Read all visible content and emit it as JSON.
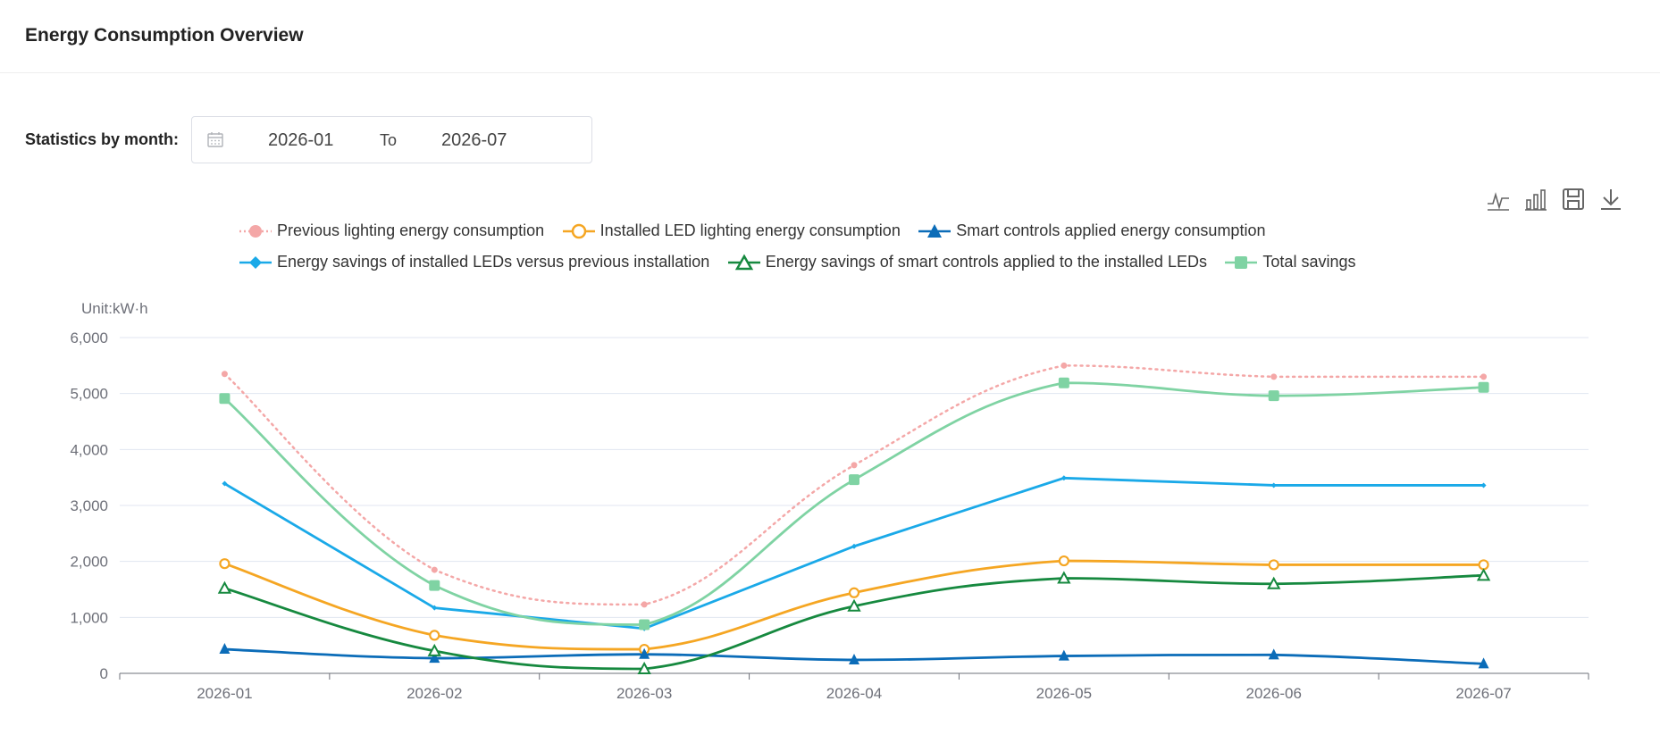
{
  "header": {
    "title": "Energy Consumption Overview"
  },
  "filters": {
    "label": "Statistics by month:",
    "start": "2026-01",
    "separator": "To",
    "end": "2026-07"
  },
  "toolbox": {
    "icons": [
      "line-chart-icon",
      "bar-chart-icon",
      "save-icon",
      "download-icon"
    ]
  },
  "chart_data": {
    "type": "line",
    "unit_label": "Unit:kW·h",
    "categories": [
      "2026-01",
      "2026-02",
      "2026-03",
      "2026-04",
      "2026-05",
      "2026-06",
      "2026-07"
    ],
    "ylim": [
      0,
      6000
    ],
    "yticks": [
      0,
      1000,
      2000,
      3000,
      4000,
      5000,
      6000
    ],
    "ytick_labels": [
      "0",
      "1,000",
      "2,000",
      "3,000",
      "4,000",
      "5,000",
      "6,000"
    ],
    "grid": true,
    "legend_position": "top-center",
    "series": [
      {
        "name": "Previous lighting energy consumption",
        "color": "#f4a7a7",
        "marker": "circle",
        "style": "dotted",
        "smooth": true,
        "values": [
          5350,
          1850,
          1230,
          3720,
          5500,
          5300,
          5300
        ]
      },
      {
        "name": "Installed LED lighting energy consumption",
        "color": "#f5a623",
        "marker": "hollow-circle",
        "style": "solid",
        "smooth": true,
        "values": [
          1960,
          680,
          430,
          1440,
          2010,
          1940,
          1940
        ]
      },
      {
        "name": "Smart controls applied energy consumption",
        "color": "#0b6cb8",
        "marker": "triangle",
        "style": "solid",
        "smooth": true,
        "values": [
          430,
          270,
          340,
          240,
          310,
          330,
          170
        ]
      },
      {
        "name": "Energy savings of installed LEDs versus previous installation",
        "color": "#1aa9e8",
        "marker": "diamond",
        "style": "solid",
        "smooth": false,
        "values": [
          3390,
          1170,
          800,
          2270,
          3490,
          3360,
          3360
        ]
      },
      {
        "name": "Energy savings of smart controls applied to the installed LEDs",
        "color": "#16893f",
        "marker": "hollow-triangle",
        "style": "solid",
        "smooth": true,
        "values": [
          1520,
          400,
          80,
          1200,
          1700,
          1600,
          1750
        ]
      },
      {
        "name": "Total savings",
        "color": "#7fd3a3",
        "marker": "square",
        "style": "solid",
        "smooth": true,
        "values": [
          4910,
          1570,
          870,
          3460,
          5190,
          4960,
          5110
        ]
      }
    ]
  }
}
